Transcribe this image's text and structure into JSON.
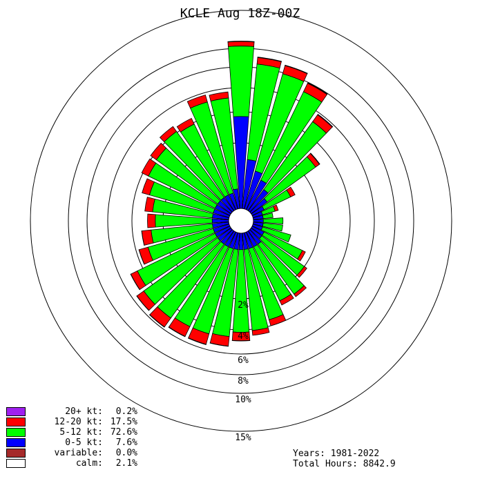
{
  "title": "KCLE Aug 18Z-00Z",
  "chart_data": {
    "type": "windrose",
    "title": "KCLE Aug 18Z-00Z",
    "rings_pct": [
      2,
      4,
      6,
      8,
      10,
      15
    ],
    "ring_labels": [
      "2%",
      "4%",
      "6%",
      "8%",
      "10%",
      "15%"
    ],
    "directions_deg": [
      0,
      10,
      20,
      30,
      40,
      50,
      60,
      70,
      80,
      90,
      100,
      110,
      120,
      130,
      140,
      150,
      160,
      170,
      180,
      190,
      200,
      210,
      220,
      230,
      240,
      250,
      260,
      270,
      280,
      290,
      300,
      310,
      320,
      330,
      340,
      350
    ],
    "series": [
      {
        "name": "0-5 kt",
        "color": "#0000ff",
        "values": [
          3.7,
          1.5,
          1.2,
          1.0,
          0.8,
          0.6,
          0.4,
          0.3,
          0.3,
          0.3,
          0.3,
          0.3,
          0.4,
          0.4,
          0.5,
          0.5,
          0.5,
          0.5,
          0.5,
          0.5,
          0.5,
          0.5,
          0.5,
          0.5,
          0.5,
          0.5,
          0.5,
          0.5,
          0.5,
          0.5,
          0.5,
          0.5,
          0.5,
          0.5,
          0.5,
          0.6
        ]
      },
      {
        "name": "5-12 kt",
        "color": "#00ff00",
        "values": [
          6.6,
          6.9,
          6.7,
          6.0,
          4.3,
          2.3,
          0.9,
          0.4,
          0.3,
          0.6,
          0.6,
          0.9,
          1.3,
          1.6,
          2.3,
          2.2,
          3.1,
          3.6,
          3.7,
          4.1,
          4.2,
          4.2,
          4.4,
          4.4,
          4.0,
          2.7,
          2.3,
          2.0,
          2.2,
          2.6,
          3.1,
          3.2,
          3.6,
          3.4,
          4.7,
          4.6
        ]
      },
      {
        "name": "12-20 kt",
        "color": "#ff0000",
        "values": [
          0.6,
          0.7,
          0.9,
          0.9,
          0.7,
          0.3,
          0.15,
          0.1,
          0.0,
          0.0,
          0.0,
          0.0,
          0.1,
          0.2,
          0.2,
          0.3,
          0.4,
          0.4,
          0.7,
          0.8,
          0.9,
          0.9,
          0.9,
          0.7,
          0.6,
          0.6,
          0.6,
          0.5,
          0.5,
          0.5,
          0.5,
          0.5,
          0.5,
          0.5,
          0.6,
          0.5
        ]
      },
      {
        "name": "20+ kt",
        "color": "#a020f0",
        "values": [
          0.05,
          0.05,
          0.05,
          0.05,
          0.05,
          0.03,
          0,
          0,
          0,
          0,
          0,
          0,
          0,
          0,
          0,
          0,
          0,
          0,
          0.02,
          0.02,
          0.03,
          0.03,
          0.03,
          0.02,
          0.02,
          0.01,
          0.01,
          0,
          0,
          0,
          0,
          0,
          0,
          0,
          0,
          0
        ]
      }
    ]
  },
  "legend": [
    {
      "label": "20+ kt:",
      "value": "0.2%",
      "color": "#a020f0"
    },
    {
      "label": "12-20 kt:",
      "value": "17.5%",
      "color": "#ff0000"
    },
    {
      "label": "5-12 kt:",
      "value": "72.6%",
      "color": "#00ff00"
    },
    {
      "label": "0-5 kt:",
      "value": "7.6%",
      "color": "#0000ff"
    },
    {
      "label": "variable:",
      "value": "0.0%",
      "color": "#a52a2a"
    },
    {
      "label": "calm:",
      "value": "2.1%",
      "color": "#ffffff"
    }
  ],
  "info": {
    "years": "Years: 1981-2022",
    "total_hours": "Total Hours: 8842.9"
  }
}
